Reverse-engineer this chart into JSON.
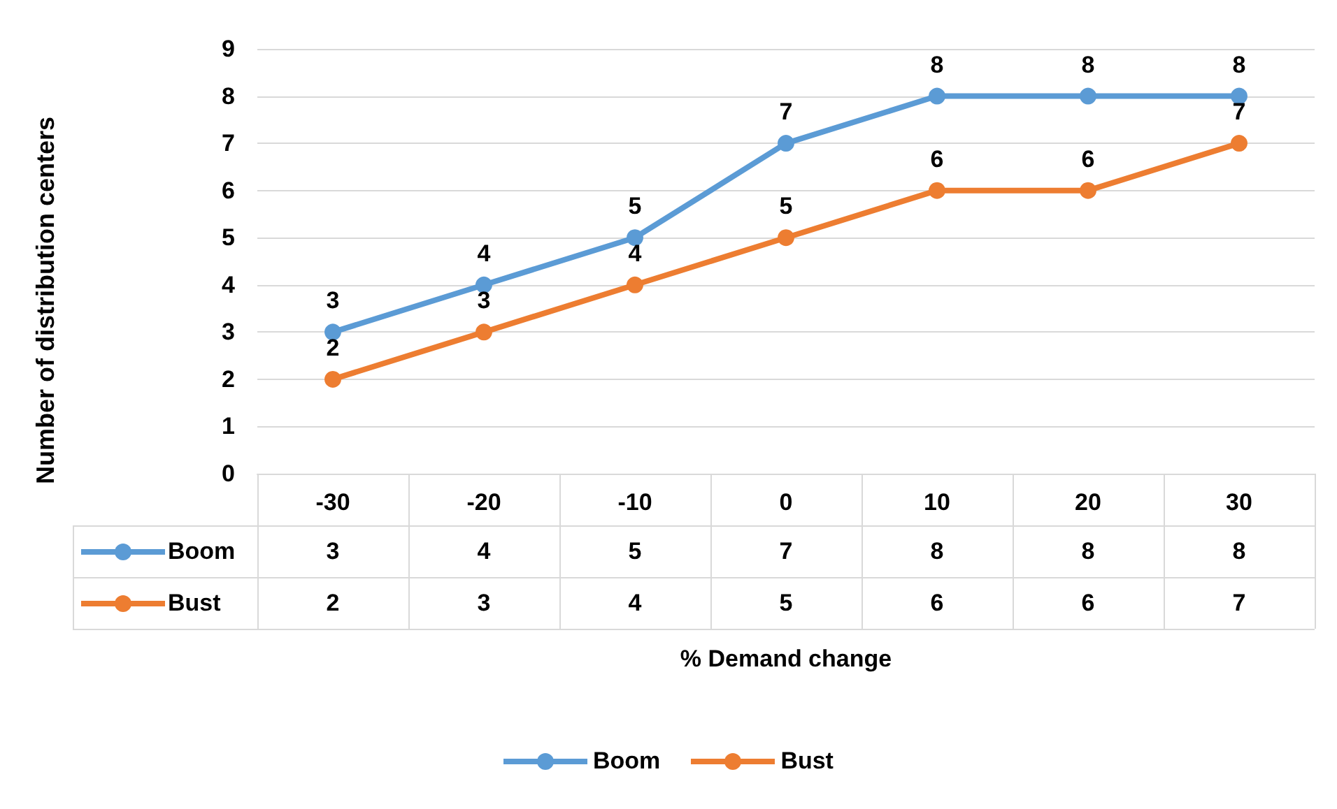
{
  "chart_data": {
    "type": "line",
    "categories": [
      "-30",
      "-20",
      "-10",
      "0",
      "10",
      "20",
      "30"
    ],
    "series": [
      {
        "name": "Boom",
        "color": "#5b9bd5",
        "values": [
          3,
          4,
          5,
          7,
          8,
          8,
          8
        ]
      },
      {
        "name": "Bust",
        "color": "#ed7d31",
        "values": [
          2,
          3,
          4,
          5,
          6,
          6,
          7
        ]
      }
    ],
    "annotations": [
      {
        "text": "3",
        "x": "-30",
        "y": 3
      },
      {
        "text": "4",
        "x": "-20",
        "y": 4
      },
      {
        "text": "5",
        "x": "-10",
        "y": 5
      },
      {
        "text": "7",
        "x": "0",
        "y": 7
      },
      {
        "text": "8",
        "x": "10",
        "y": 8
      },
      {
        "text": "8",
        "x": "20",
        "y": 8
      },
      {
        "text": "8",
        "x": "30",
        "y": 8
      },
      {
        "text": "2",
        "x": "-30",
        "y": 2
      },
      {
        "text": "3",
        "x": "-20",
        "y": 3
      },
      {
        "text": "4",
        "x": "-10",
        "y": 4
      },
      {
        "text": "5",
        "x": "0",
        "y": 5
      },
      {
        "text": "6",
        "x": "10",
        "y": 6
      },
      {
        "text": "6",
        "x": "20",
        "y": 6
      },
      {
        "text": "7",
        "x": "30",
        "y": 7
      },
      "% Demand change",
      "Number of distribution centers"
    ],
    "ylim": [
      0,
      9
    ],
    "yticks": [
      0,
      1,
      2,
      3,
      4,
      5,
      6,
      7,
      8,
      9
    ],
    "grid": "y",
    "legend": "bottom",
    "marker": "circle",
    "line_style": "solid",
    "data_labels": true
  }
}
